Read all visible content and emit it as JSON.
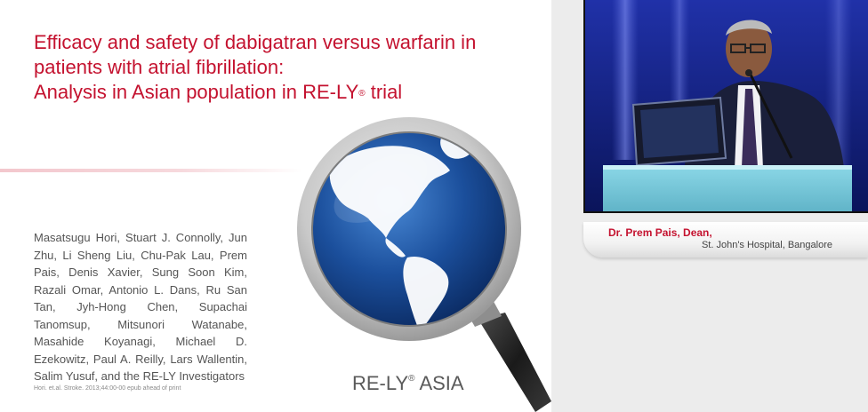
{
  "slide": {
    "title_lines": [
      "Efficacy and safety of dabigatran versus warfarin in",
      "patients with atrial fibrillation:",
      "Analysis in Asian population in RE-LY"
    ],
    "title_reg_mark": "®",
    "title_suffix": " trial",
    "authors": "Masatsugu Hori, Stuart J. Connolly, Jun Zhu, Li Sheng Liu, Chu-Pak Lau, Prem Pais, Denis Xavier, Sung Soon Kim, Razali Omar, Antonio L. Dans, Ru San Tan, Jyh-Hong Chen, Supachai Tanomsup, Mitsunori Watanabe, Masahide Koyanagi, Michael D. Ezekowitz, Paul A. Reilly, Lars Wallentin, Salim Yusuf, and the RE-LY Investigators",
    "citation": "Hori. et.al. Stroke. 2013;44:00-00 epub ahead of print",
    "brand_name": "RE-LY",
    "brand_reg_mark": "®",
    "brand_suffix": " ASIA"
  },
  "speaker": {
    "name": "Dr. Prem Pais, Dean,",
    "organization": "St. John's Hospital, Bangalore"
  },
  "colors": {
    "title_red": "#c4122f",
    "video_background": "#0c1a72"
  }
}
